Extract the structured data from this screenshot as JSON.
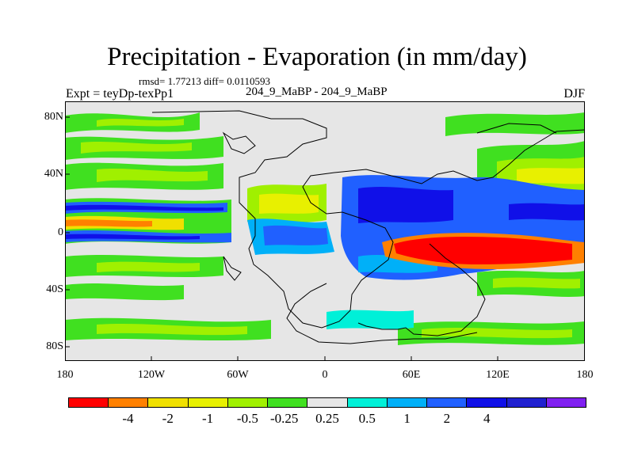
{
  "title": "Precipitation - Evaporation (in mm/day)",
  "stats": "rmsd= 1.77213  diff= 0.0110593",
  "expt": "Expt = teyDp-texPp1",
  "runs": "204_9_MaBP - 204_9_MaBP",
  "season": "DJF",
  "lat_labels": [
    "80N",
    "40N",
    "0",
    "40S",
    "80S"
  ],
  "lon_labels": [
    "180",
    "120W",
    "60W",
    "0",
    "60E",
    "120E",
    "180"
  ],
  "colorbar": {
    "colors": [
      "#ff0000",
      "#ff8000",
      "#f0e000",
      "#e8f000",
      "#a0f000",
      "#40e020",
      "#e6e6e6",
      "#00f0d8",
      "#00b0f8",
      "#2060ff",
      "#1010e8",
      "#2020d0",
      "#8020f0"
    ],
    "labels": [
      "-4",
      "-2",
      "-1",
      "-0.5",
      "-0.25",
      "0.25",
      "0.5",
      "1",
      "2",
      "4"
    ]
  }
}
